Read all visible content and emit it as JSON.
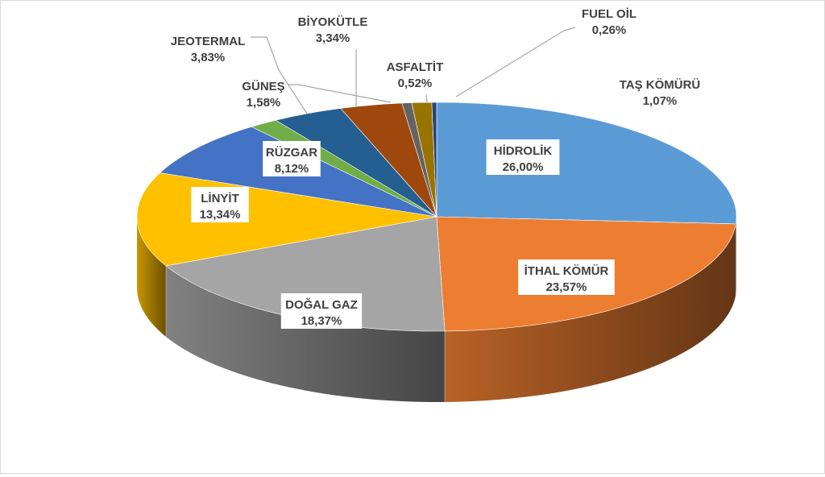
{
  "chart_data": {
    "type": "pie",
    "style": "3d",
    "title": "",
    "legend": "none",
    "categories": [
      "HİDROLİK",
      "İTHAL KÖMÜR",
      "DOĞAL GAZ",
      "LİNYİT",
      "RÜZGAR",
      "GÜNEŞ",
      "JEOTERMAL",
      "BİYOKÜTLE",
      "ASFALTİT",
      "TAŞ KÖMÜRÜ",
      "FUEL OİL"
    ],
    "values": [
      26.0,
      23.57,
      18.37,
      13.34,
      8.12,
      1.58,
      3.83,
      3.34,
      0.52,
      1.07,
      0.26
    ],
    "value_labels": [
      "26,00%",
      "23,57%",
      "18,37%",
      "13,34%",
      "8,12%",
      "1,58%",
      "3,83%",
      "3,34%",
      "0,52%",
      "1,07%",
      "0,26%"
    ],
    "colors": [
      "#5b9bd5",
      "#ed7d31",
      "#a5a5a5",
      "#ffc000",
      "#4472c4",
      "#70ad47",
      "#255e91",
      "#9e480e",
      "#636363",
      "#997300",
      "#264478"
    ],
    "slice_order": [
      "HİDROLİK",
      "İTHAL KÖMÜR",
      "DOĞAL GAZ",
      "LİNYİT",
      "RÜZGAR",
      "GÜNEŞ",
      "JEOTERMAL",
      "BİYOKÜTLE",
      "ASFALTİT",
      "TAŞ KÖMÜRÜ",
      "FUEL OİL"
    ]
  }
}
